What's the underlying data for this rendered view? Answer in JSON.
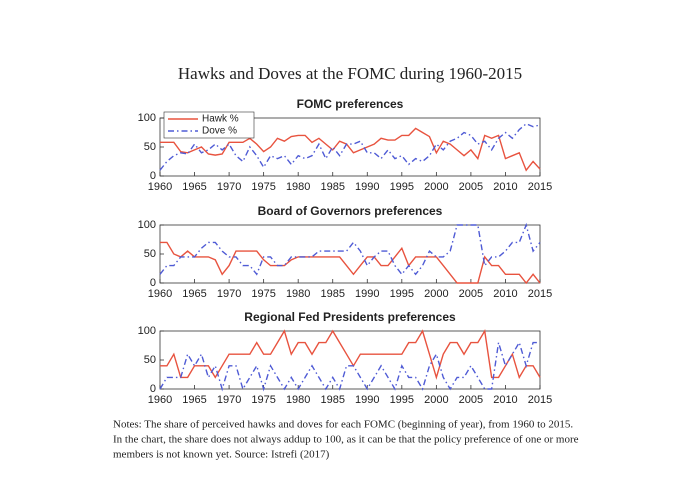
{
  "title": "Hawks and Doves at the FOMC during 1960-2015",
  "notes": [
    "Notes: The share of perceived hawks and doves for each FOMC (beginning of year), from 1960 to 2015.",
    "In the chart, the share does not always addup to 100, as it can be that the policy preference of one or more",
    "members is not known yet. Source: Istrefi (2017)"
  ],
  "chart_data": [
    {
      "type": "line",
      "title": "FOMC preferences",
      "x": [
        1960,
        1961,
        1962,
        1963,
        1964,
        1965,
        1966,
        1967,
        1968,
        1969,
        1970,
        1971,
        1972,
        1973,
        1974,
        1975,
        1976,
        1977,
        1978,
        1979,
        1980,
        1981,
        1982,
        1983,
        1984,
        1985,
        1986,
        1987,
        1988,
        1989,
        1990,
        1991,
        1992,
        1993,
        1994,
        1995,
        1996,
        1997,
        1998,
        1999,
        2000,
        2001,
        2002,
        2003,
        2004,
        2005,
        2006,
        2007,
        2008,
        2009,
        2010,
        2011,
        2012,
        2013,
        2014,
        2015
      ],
      "series": [
        {
          "name": "Hawk %",
          "color": "#e8533f",
          "linestyle": "solid",
          "values": [
            58,
            58,
            58,
            42,
            40,
            45,
            50,
            38,
            36,
            38,
            58,
            58,
            58,
            65,
            55,
            42,
            50,
            65,
            60,
            68,
            70,
            70,
            58,
            65,
            55,
            45,
            60,
            55,
            40,
            45,
            50,
            55,
            65,
            62,
            62,
            70,
            70,
            82,
            75,
            68,
            40,
            60,
            55,
            45,
            35,
            45,
            30,
            70,
            65,
            70,
            30,
            35,
            40,
            10,
            25,
            12
          ]
        },
        {
          "name": "Dove %",
          "color": "#4f5bd5",
          "linestyle": "dashdot",
          "values": [
            10,
            25,
            35,
            40,
            38,
            55,
            40,
            45,
            55,
            45,
            55,
            35,
            25,
            50,
            35,
            15,
            35,
            30,
            35,
            20,
            35,
            30,
            35,
            55,
            30,
            50,
            35,
            55,
            55,
            60,
            40,
            40,
            30,
            45,
            30,
            35,
            20,
            30,
            25,
            35,
            55,
            45,
            60,
            65,
            75,
            70,
            55,
            60,
            45,
            65,
            75,
            65,
            80,
            90,
            85,
            88
          ]
        }
      ],
      "xlim": [
        1960,
        2015
      ],
      "ylim": [
        0,
        100
      ],
      "xticks": [
        1960,
        1965,
        1970,
        1975,
        1980,
        1985,
        1990,
        1995,
        2000,
        2005,
        2010,
        2015
      ],
      "yticks": [
        0,
        50,
        100
      ],
      "legend": "upper left"
    },
    {
      "type": "line",
      "title": "Board of Governors preferences",
      "x": [
        1960,
        1961,
        1962,
        1963,
        1964,
        1965,
        1966,
        1967,
        1968,
        1969,
        1970,
        1971,
        1972,
        1973,
        1974,
        1975,
        1976,
        1977,
        1978,
        1979,
        1980,
        1981,
        1982,
        1983,
        1984,
        1985,
        1986,
        1987,
        1988,
        1989,
        1990,
        1991,
        1992,
        1993,
        1994,
        1995,
        1996,
        1997,
        1998,
        1999,
        2000,
        2001,
        2002,
        2003,
        2004,
        2005,
        2006,
        2007,
        2008,
        2009,
        2010,
        2011,
        2012,
        2013,
        2014,
        2015
      ],
      "series": [
        {
          "color": "#e8533f",
          "linestyle": "solid",
          "values": [
            70,
            70,
            50,
            45,
            55,
            45,
            45,
            45,
            40,
            15,
            30,
            55,
            55,
            55,
            55,
            40,
            30,
            30,
            30,
            40,
            45,
            45,
            45,
            45,
            45,
            45,
            45,
            30,
            15,
            30,
            45,
            45,
            30,
            30,
            45,
            60,
            30,
            45,
            45,
            45,
            45,
            30,
            15,
            0,
            0,
            0,
            0,
            45,
            30,
            30,
            15,
            15,
            15,
            0,
            15,
            0
          ]
        },
        {
          "color": "#4f5bd5",
          "linestyle": "dashdot",
          "values": [
            15,
            30,
            30,
            45,
            45,
            45,
            60,
            70,
            70,
            55,
            45,
            45,
            30,
            30,
            15,
            45,
            45,
            30,
            30,
            45,
            45,
            45,
            45,
            55,
            55,
            55,
            55,
            55,
            70,
            55,
            30,
            45,
            55,
            55,
            30,
            15,
            30,
            15,
            30,
            55,
            45,
            45,
            55,
            100,
            100,
            100,
            100,
            30,
            45,
            45,
            55,
            70,
            70,
            100,
            55,
            70
          ]
        }
      ],
      "xlim": [
        1960,
        2015
      ],
      "ylim": [
        0,
        100
      ],
      "xticks": [
        1960,
        1965,
        1970,
        1975,
        1980,
        1985,
        1990,
        1995,
        2000,
        2005,
        2010,
        2015
      ],
      "yticks": [
        0,
        50,
        100
      ]
    },
    {
      "type": "line",
      "title": "Regional Fed Presidents preferences",
      "x": [
        1960,
        1961,
        1962,
        1963,
        1964,
        1965,
        1966,
        1967,
        1968,
        1969,
        1970,
        1971,
        1972,
        1973,
        1974,
        1975,
        1976,
        1977,
        1978,
        1979,
        1980,
        1981,
        1982,
        1983,
        1984,
        1985,
        1986,
        1987,
        1988,
        1989,
        1990,
        1991,
        1992,
        1993,
        1994,
        1995,
        1996,
        1997,
        1998,
        1999,
        2000,
        2001,
        2002,
        2003,
        2004,
        2005,
        2006,
        2007,
        2008,
        2009,
        2010,
        2011,
        2012,
        2013,
        2014,
        2015
      ],
      "series": [
        {
          "color": "#e8533f",
          "linestyle": "solid",
          "values": [
            40,
            40,
            60,
            20,
            20,
            40,
            40,
            40,
            20,
            40,
            60,
            60,
            60,
            60,
            80,
            60,
            60,
            80,
            100,
            60,
            80,
            80,
            60,
            80,
            80,
            100,
            80,
            60,
            40,
            60,
            60,
            60,
            60,
            60,
            60,
            60,
            80,
            80,
            100,
            60,
            20,
            60,
            80,
            80,
            60,
            80,
            80,
            100,
            20,
            20,
            40,
            60,
            20,
            40,
            40,
            20
          ]
        },
        {
          "color": "#4f5bd5",
          "linestyle": "dashdot",
          "values": [
            0,
            20,
            20,
            20,
            60,
            40,
            60,
            20,
            40,
            0,
            40,
            40,
            0,
            20,
            40,
            0,
            40,
            20,
            0,
            20,
            0,
            20,
            40,
            20,
            0,
            20,
            0,
            40,
            40,
            20,
            0,
            20,
            40,
            20,
            0,
            40,
            20,
            20,
            0,
            40,
            60,
            20,
            0,
            20,
            20,
            40,
            20,
            0,
            0,
            80,
            40,
            60,
            80,
            40,
            80,
            80
          ]
        }
      ],
      "xlim": [
        1960,
        2015
      ],
      "ylim": [
        0,
        100
      ],
      "xticks": [
        1960,
        1965,
        1970,
        1975,
        1980,
        1985,
        1990,
        1995,
        2000,
        2005,
        2010,
        2015
      ],
      "yticks": [
        0,
        50,
        100
      ]
    }
  ]
}
